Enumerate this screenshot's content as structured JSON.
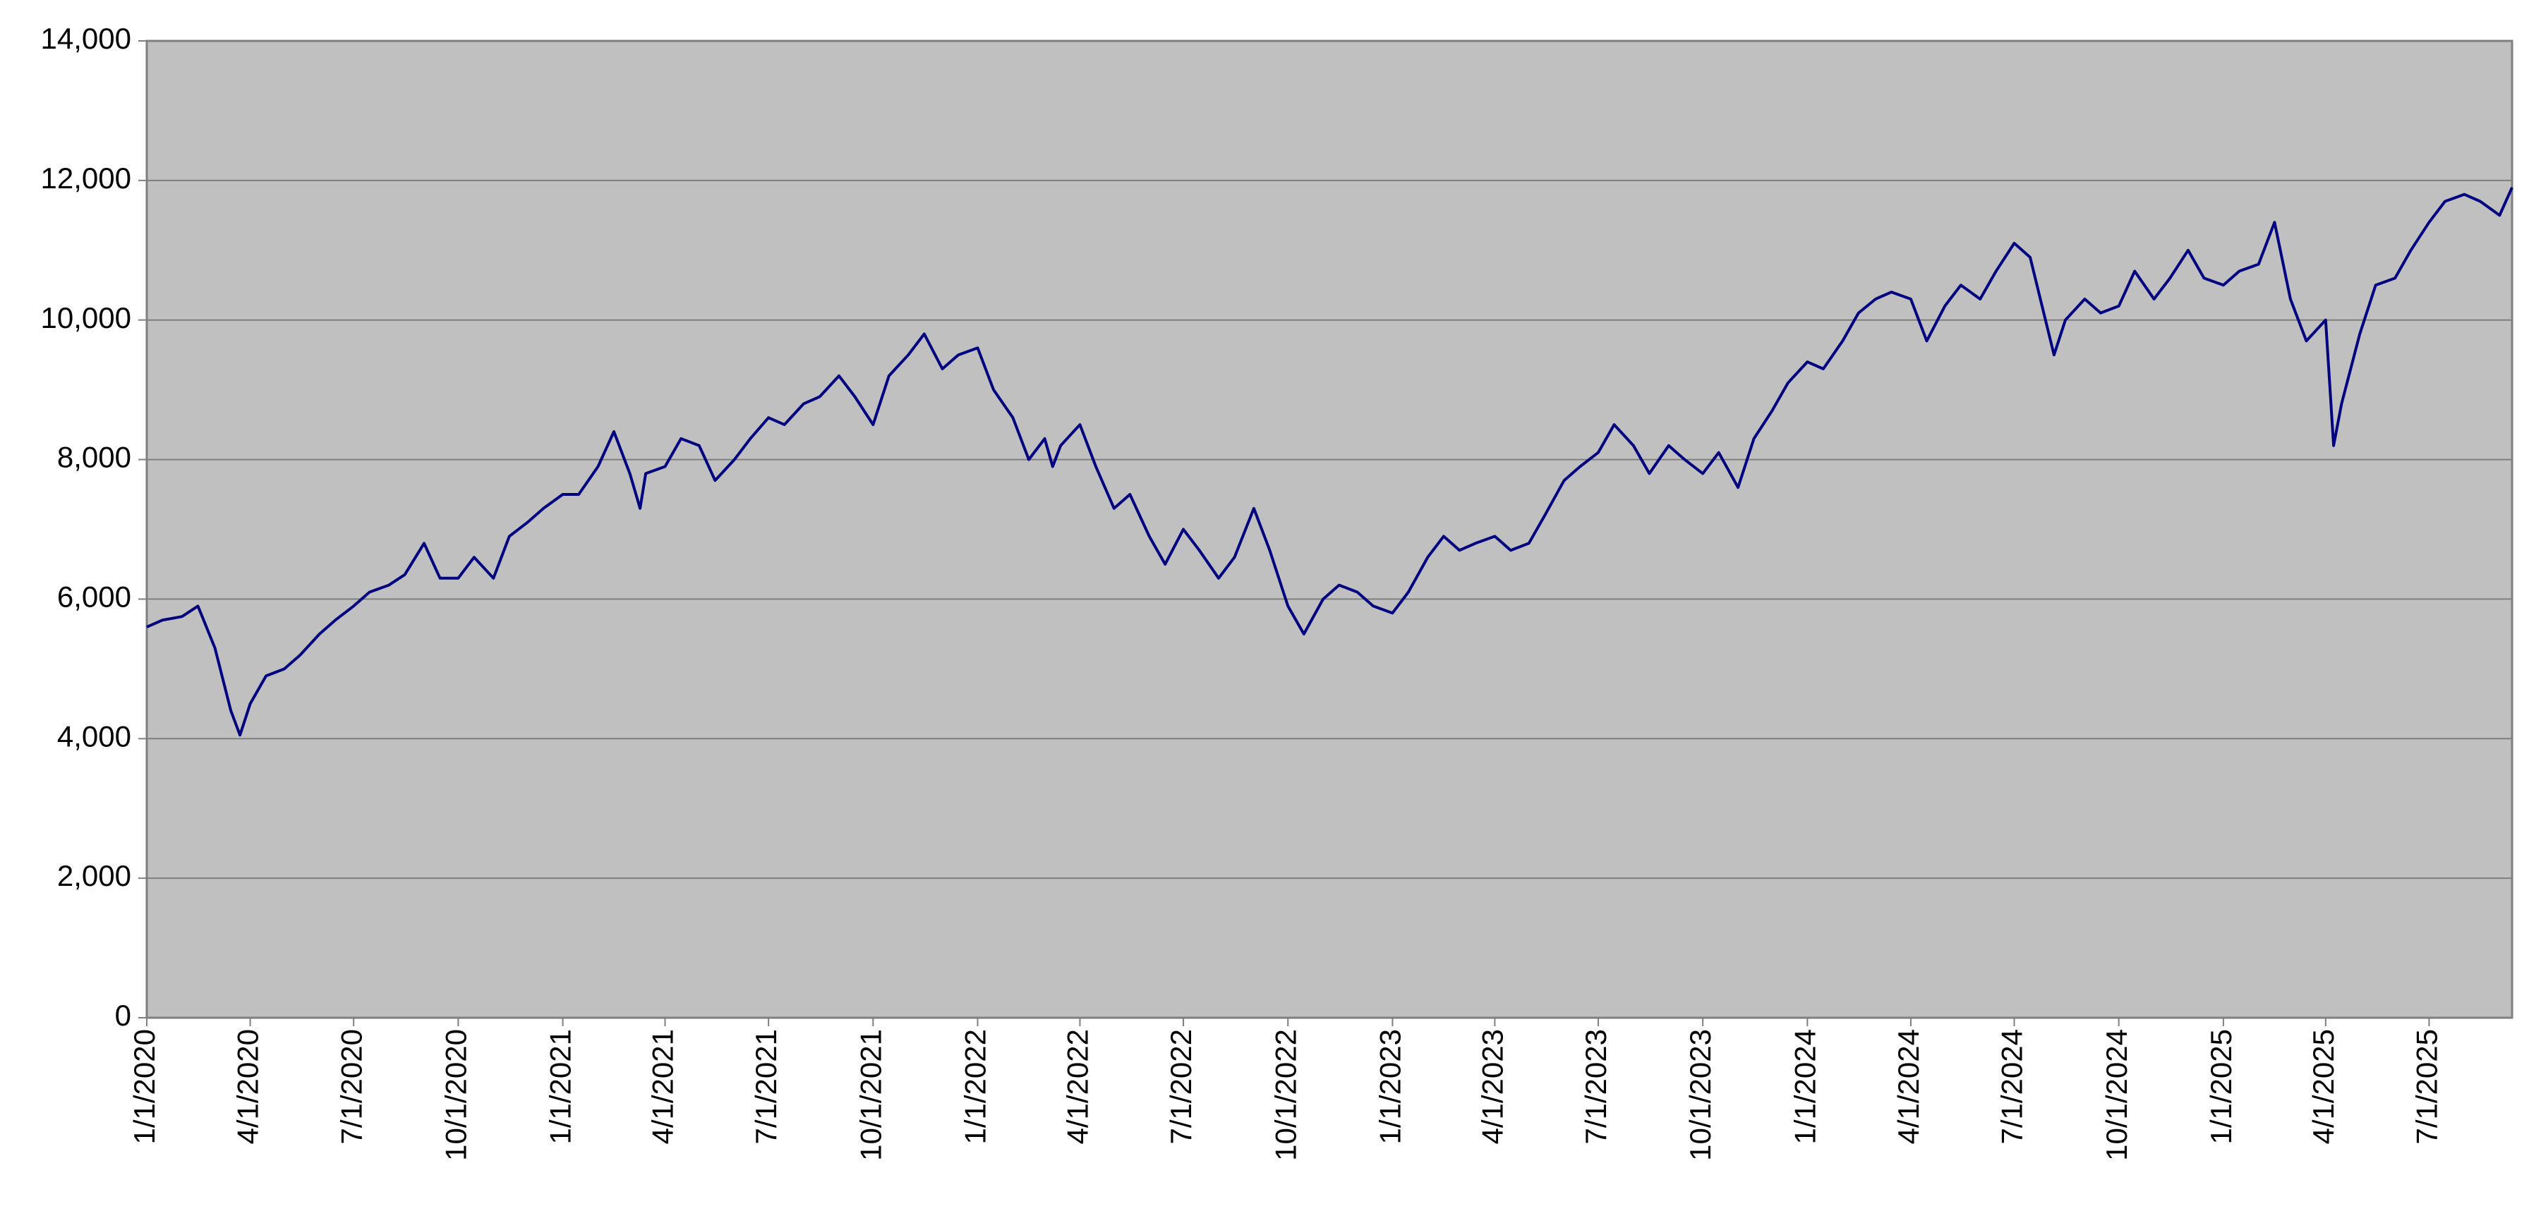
{
  "chart_data": {
    "type": "line",
    "x": [
      "1/1/2020",
      "1/15/2020",
      "2/1/2020",
      "2/15/2020",
      "3/1/2020",
      "3/15/2020",
      "3/23/2020",
      "4/1/2020",
      "4/15/2020",
      "5/1/2020",
      "5/15/2020",
      "6/1/2020",
      "6/15/2020",
      "7/1/2020",
      "7/15/2020",
      "8/1/2020",
      "8/15/2020",
      "9/1/2020",
      "9/15/2020",
      "10/1/2020",
      "10/15/2020",
      "11/1/2020",
      "11/15/2020",
      "12/1/2020",
      "12/15/2020",
      "1/1/2021",
      "1/15/2021",
      "2/1/2021",
      "2/15/2021",
      "3/1/2021",
      "3/10/2021",
      "3/15/2021",
      "4/1/2021",
      "4/15/2021",
      "5/1/2021",
      "5/15/2021",
      "6/1/2021",
      "6/15/2021",
      "7/1/2021",
      "7/15/2021",
      "8/1/2021",
      "8/15/2021",
      "9/1/2021",
      "9/15/2021",
      "10/1/2021",
      "10/15/2021",
      "11/1/2021",
      "11/15/2021",
      "12/1/2021",
      "12/15/2021",
      "1/1/2022",
      "1/15/2022",
      "2/1/2022",
      "2/15/2022",
      "3/1/2022",
      "3/8/2022",
      "3/15/2022",
      "4/1/2022",
      "4/15/2022",
      "5/1/2022",
      "5/15/2022",
      "6/1/2022",
      "6/15/2022",
      "7/1/2022",
      "7/15/2022",
      "8/1/2022",
      "8/15/2022",
      "9/1/2022",
      "9/15/2022",
      "10/1/2022",
      "10/15/2022",
      "11/1/2022",
      "11/15/2022",
      "12/1/2022",
      "12/15/2022",
      "1/1/2023",
      "1/15/2023",
      "2/1/2023",
      "2/15/2023",
      "3/1/2023",
      "3/15/2023",
      "4/1/2023",
      "4/15/2023",
      "5/1/2023",
      "5/15/2023",
      "6/1/2023",
      "6/15/2023",
      "7/1/2023",
      "7/15/2023",
      "8/1/2023",
      "8/15/2023",
      "9/1/2023",
      "9/15/2023",
      "10/1/2023",
      "10/15/2023",
      "11/1/2023",
      "11/15/2023",
      "12/1/2023",
      "12/15/2023",
      "1/1/2024",
      "1/15/2024",
      "2/1/2024",
      "2/15/2024",
      "3/1/2024",
      "3/15/2024",
      "4/1/2024",
      "4/15/2024",
      "5/1/2024",
      "5/15/2024",
      "6/1/2024",
      "6/15/2024",
      "7/1/2024",
      "7/15/2024",
      "8/5/2024",
      "8/15/2024",
      "9/1/2024",
      "9/15/2024",
      "10/1/2024",
      "10/15/2024",
      "11/1/2024",
      "11/15/2024",
      "12/1/2024",
      "12/15/2024",
      "1/1/2025",
      "1/15/2025",
      "2/1/2025",
      "2/15/2025",
      "3/1/2025",
      "3/15/2025",
      "4/1/2025",
      "4/8/2025",
      "4/15/2025",
      "5/1/2025",
      "5/15/2025",
      "6/1/2025",
      "6/15/2025",
      "7/1/2025",
      "7/15/2025",
      "8/1/2025",
      "8/15/2025",
      "9/1/2025",
      "9/12/2025"
    ],
    "series": [
      {
        "color": "#000080",
        "values": [
          5600,
          5700,
          5750,
          5900,
          5300,
          4400,
          4050,
          4500,
          4900,
          5000,
          5200,
          5500,
          5700,
          5900,
          6100,
          6200,
          6350,
          6800,
          6300,
          6300,
          6600,
          6300,
          6900,
          7100,
          7300,
          7500,
          7500,
          7900,
          8400,
          7800,
          7300,
          7800,
          7900,
          8300,
          8200,
          7700,
          8000,
          8300,
          8600,
          8500,
          8800,
          8900,
          9200,
          8900,
          8500,
          9200,
          9500,
          9800,
          9300,
          9500,
          9600,
          9000,
          8600,
          8000,
          8300,
          7900,
          8200,
          8500,
          7900,
          7300,
          7500,
          6900,
          6500,
          7000,
          6700,
          6300,
          6600,
          7300,
          6700,
          5900,
          5500,
          6000,
          6200,
          6100,
          5900,
          5800,
          6100,
          6600,
          6900,
          6700,
          6800,
          6900,
          6700,
          6800,
          7200,
          7700,
          7900,
          8100,
          8500,
          8200,
          7800,
          8200,
          8000,
          7800,
          8100,
          7600,
          8300,
          8700,
          9100,
          9400,
          9300,
          9700,
          10100,
          10300,
          10400,
          10300,
          9700,
          10200,
          10500,
          10300,
          10700,
          11100,
          10900,
          9500,
          10000,
          10300,
          10100,
          10200,
          10700,
          10300,
          10600,
          11000,
          10600,
          10500,
          10700,
          10800,
          11400,
          10300,
          9700,
          10000,
          8200,
          8800,
          9800,
          10500,
          10600,
          11000,
          11400,
          11700,
          11800,
          11700,
          11500,
          11900
        ]
      }
    ],
    "xlim": [
      "1/1/2020",
      "9/12/2025"
    ],
    "xticks": [
      "1/1/2020",
      "4/1/2020",
      "7/1/2020",
      "10/1/2020",
      "1/1/2021",
      "4/1/2021",
      "7/1/2021",
      "10/1/2021",
      "1/1/2022",
      "4/1/2022",
      "7/1/2022",
      "10/1/2022",
      "1/1/2023",
      "4/1/2023",
      "7/1/2023",
      "10/1/2023",
      "1/1/2024",
      "4/1/2024",
      "7/1/2024",
      "10/1/2024",
      "1/1/2025",
      "4/1/2025",
      "7/1/2025"
    ],
    "ylim": [
      0,
      14000
    ],
    "yticks": [
      0,
      {
        "value": 2000,
        "label": "2,000"
      },
      {
        "value": 4000,
        "label": "4,000"
      },
      {
        "value": 6000,
        "label": "6,000"
      },
      {
        "value": 8000,
        "label": "8,000"
      },
      {
        "value": 10000,
        "label": "10,000"
      },
      {
        "value": 12000,
        "label": "12,000"
      },
      {
        "value": 14000,
        "label": "14,000"
      }
    ],
    "grid": true,
    "plot_background": "#c0c0c0"
  }
}
